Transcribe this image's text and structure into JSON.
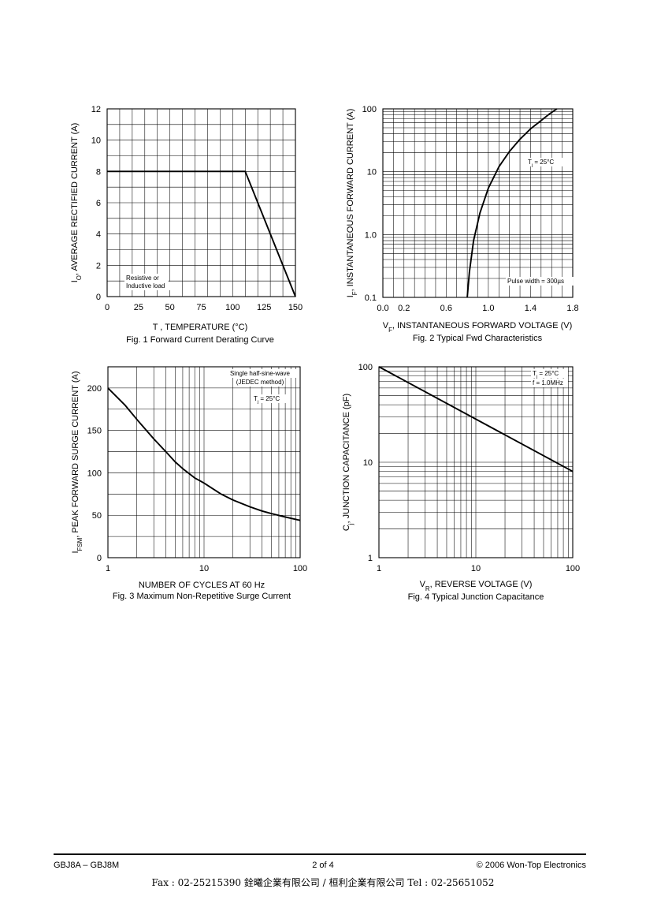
{
  "chart_data": [
    {
      "type": "line",
      "title": "Fig. 1  Forward Current Derating Curve",
      "xlabel": "T  , TEMPERATURE (°C)",
      "ylabel": "I_O, AVERAGE RECTIFIED CURRENT (A)",
      "xlim": [
        0,
        150
      ],
      "ylim": [
        0,
        12
      ],
      "xticks": [
        "0",
        "25",
        "50",
        "75",
        "100",
        "125",
        "150"
      ],
      "yticks": [
        "0",
        "2",
        "4",
        "6",
        "8",
        "10",
        "12"
      ],
      "grid": true,
      "annotations": [
        "Resistive or",
        "Inductive load"
      ],
      "series": [
        {
          "x": [
            0,
            110,
            150
          ],
          "y": [
            8,
            8,
            0
          ]
        }
      ]
    },
    {
      "type": "line",
      "title": "Fig. 2  Typical Fwd Characteristics",
      "xlabel": "V_F, INSTANTANEOUS FORWARD VOLTAGE (V)",
      "ylabel": "I_F, INSTANTANEOUS FORWARD CURRENT (A)",
      "xlim": [
        0,
        1.8
      ],
      "ylim": [
        0.1,
        100
      ],
      "yscale": "log",
      "xticks": [
        "0.0",
        "0.2",
        "0.6",
        "1.0",
        "1.4",
        "1.8"
      ],
      "yticks": [
        "0.1",
        "1.0",
        "10",
        "100"
      ],
      "grid": true,
      "annotations": [
        "T_j = 25°C",
        "Pulse width = 300µs"
      ],
      "series": [
        {
          "x": [
            0.8,
            0.82,
            0.86,
            0.92,
            1.0,
            1.1,
            1.2,
            1.3,
            1.4,
            1.5,
            1.58,
            1.65
          ],
          "y": [
            0.1,
            0.25,
            0.8,
            2.2,
            5.5,
            12,
            21,
            33,
            48,
            65,
            83,
            100
          ]
        }
      ]
    },
    {
      "type": "line",
      "title": "Fig. 3  Maximum Non-Repetitive Surge Current",
      "xlabel": "NUMBER OF CYCLES AT 60 Hz",
      "ylabel": "I_FSM, PEAK FORWARD SURGE CURRENT (A)",
      "xlim": [
        1,
        100
      ],
      "ylim": [
        0,
        225
      ],
      "xscale": "log",
      "xticks": [
        "1",
        "10",
        "100"
      ],
      "yticks": [
        "0",
        "50",
        "100",
        "150",
        "200"
      ],
      "grid": true,
      "annotations": [
        "Single half-sine-wave",
        "(JEDEC method)",
        "T_j = 25°C"
      ],
      "series": [
        {
          "x": [
            1,
            1.5,
            2,
            3,
            4,
            5,
            6,
            8,
            10,
            15,
            20,
            30,
            40,
            50,
            70,
            100
          ],
          "y": [
            200,
            180,
            163,
            140,
            125,
            113,
            105,
            94,
            88,
            75,
            68,
            60,
            55,
            52,
            48,
            44
          ]
        }
      ]
    },
    {
      "type": "line",
      "title": "Fig. 4  Typical Junction Capacitance",
      "xlabel": "V_R, REVERSE VOLTAGE (V)",
      "ylabel": "C_j, JUNCTION CAPACITANCE (pF)",
      "xlim": [
        1,
        100
      ],
      "ylim": [
        1,
        100
      ],
      "xscale": "log",
      "yscale": "log",
      "xticks": [
        "1",
        "10",
        "100"
      ],
      "yticks": [
        "1",
        "10",
        "100"
      ],
      "grid": true,
      "annotations": [
        "T_j = 25°C",
        "f = 1.0MHz"
      ],
      "series": [
        {
          "x": [
            1,
            100
          ],
          "y": [
            100,
            8
          ]
        }
      ]
    }
  ],
  "footer": {
    "part": "GBJ8A – GBJ8M",
    "page": "2 of 4",
    "copyright": "© 2006 Won-Top Electronics",
    "contact": "Fax : 02-25215390   銓曦企業有限公司 / 桓利企業有限公司   Tel : 02-25651052"
  }
}
